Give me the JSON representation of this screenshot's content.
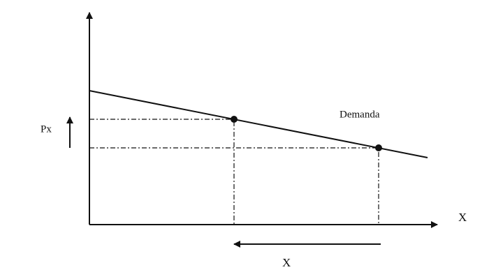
{
  "labels": {
    "price": "Px",
    "curve": "Demanda",
    "x_axis": "X",
    "quantity": "X"
  }
}
